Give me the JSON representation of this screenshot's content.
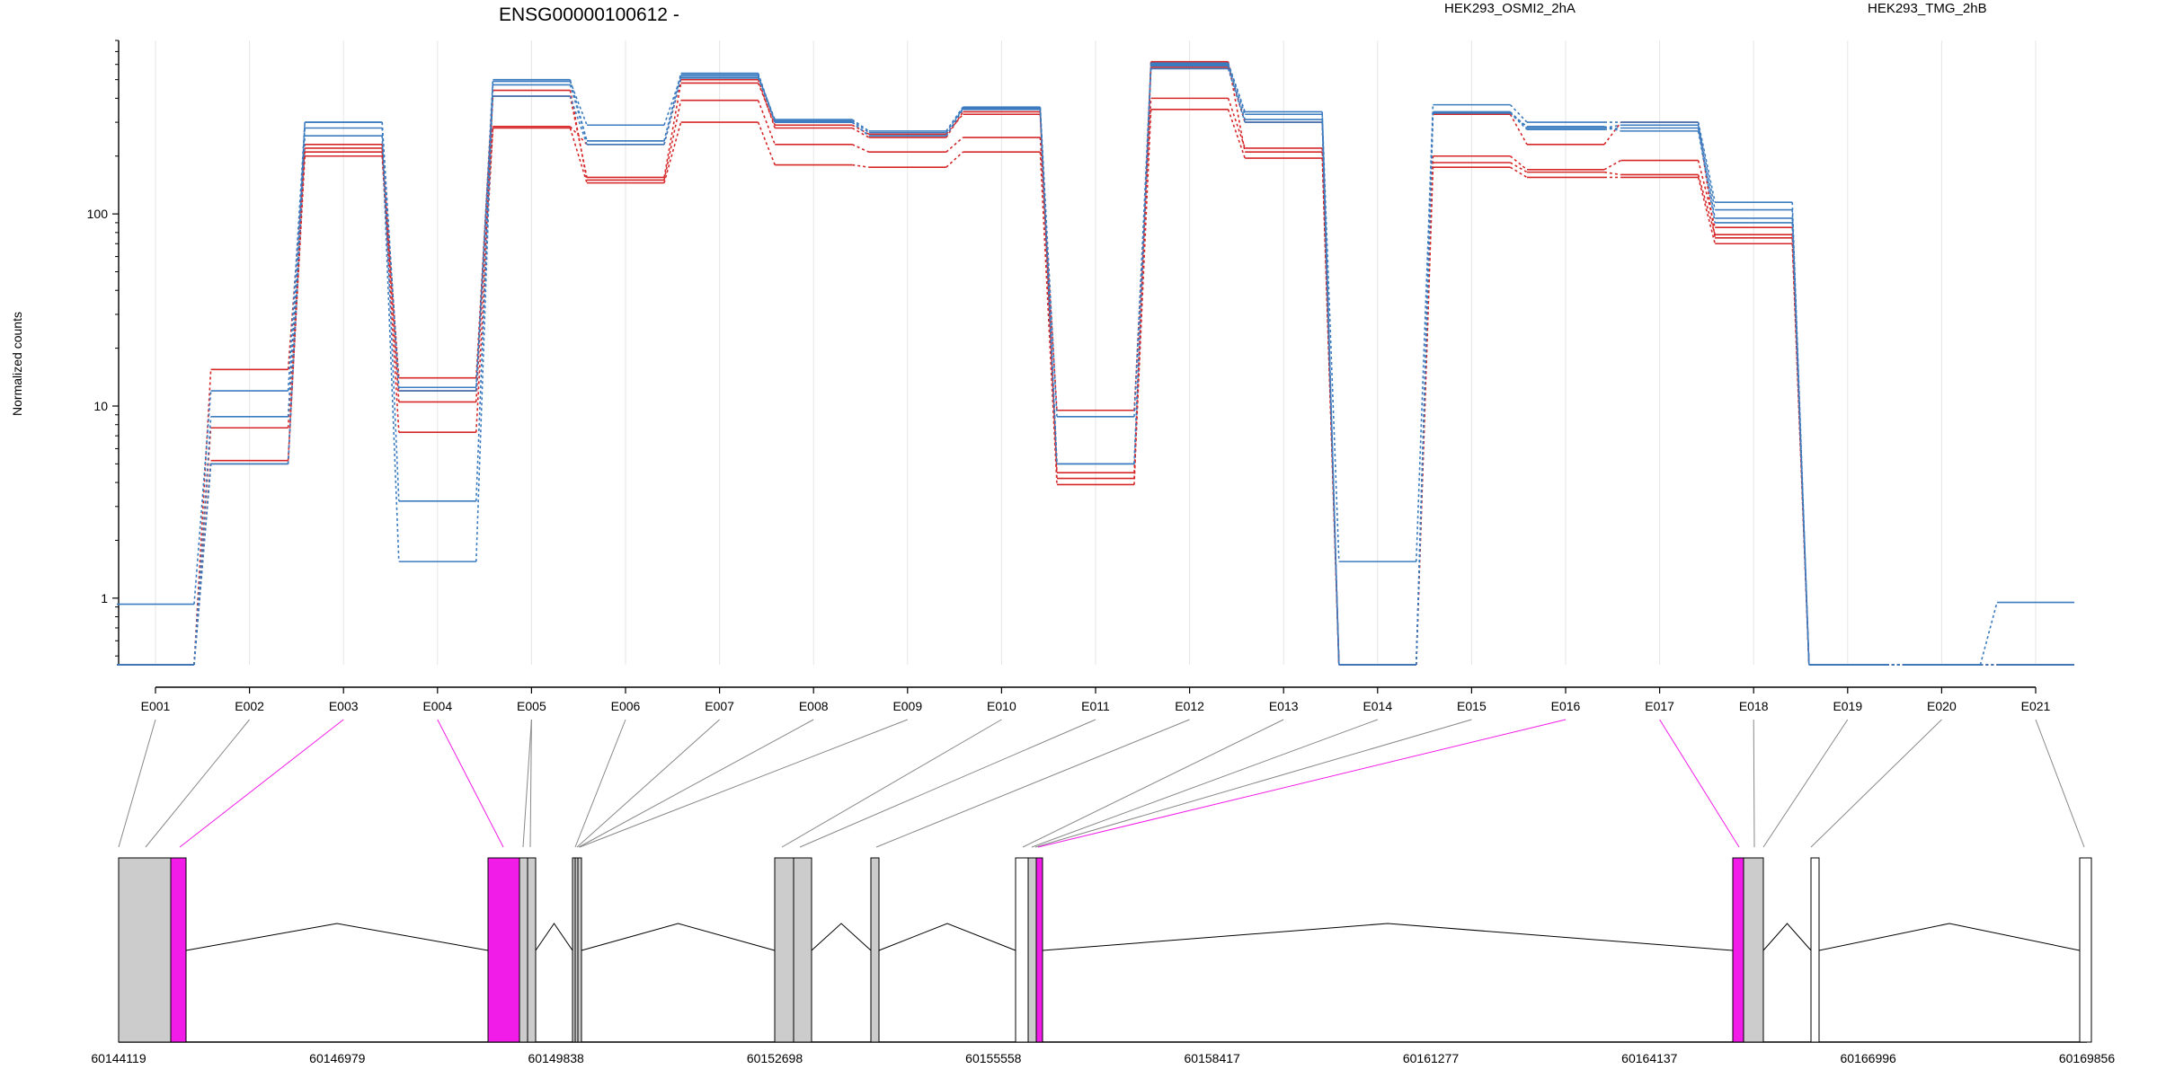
{
  "chart_data": {
    "type": "line",
    "title": "ENSG00000100612 -",
    "ylabel": "Normalized counts",
    "y_scale": "log",
    "ylim": [
      0.45,
      800
    ],
    "y_ticks": [
      1,
      10,
      100
    ],
    "y_tick_labels": [
      "1",
      "10",
      "100"
    ],
    "categories": [
      "E001",
      "E002",
      "E003",
      "E004",
      "E005",
      "E006",
      "E007",
      "E008",
      "E009",
      "E010",
      "E011",
      "E012",
      "E013",
      "E014",
      "E015",
      "E016",
      "E017",
      "E018",
      "E019",
      "E020",
      "E021"
    ],
    "legend": [
      {
        "name": "HEK293_OSMI2_2hA",
        "color": "#D62728"
      },
      {
        "name": "HEK293_TMG_2hB",
        "color": "#3B7BBF"
      }
    ],
    "series": [
      {
        "group": "HEK293_OSMI2_2hA",
        "color": "#D62728",
        "values": [
          0.45,
          15.5,
          220,
          14,
          440,
          150,
          390,
          230,
          210,
          250,
          9.5,
          400,
          220,
          0.45,
          200,
          170,
          190,
          85,
          0.45,
          0.45,
          0.45
        ]
      },
      {
        "group": "HEK293_OSMI2_2hA",
        "color": "#D62728",
        "values": [
          0.45,
          7.7,
          210,
          10.5,
          410,
          155,
          480,
          290,
          260,
          330,
          4.2,
          350,
          195,
          0.45,
          185,
          165,
          160,
          78,
          0.45,
          0.45,
          0.45
        ]
      },
      {
        "group": "HEK293_OSMI2_2hA",
        "color": "#D62728",
        "values": [
          0.45,
          5.2,
          200,
          7.3,
          280,
          145,
          300,
          180,
          175,
          210,
          3.9,
          620,
          210,
          0.45,
          175,
          155,
          155,
          70,
          0.45,
          0.45,
          0.45
        ]
      },
      {
        "group": "HEK293_OSMI2_2hA",
        "color": "#D62728",
        "values": [
          0.45,
          5.0,
          230,
          12,
          285,
          230,
          500,
          280,
          250,
          340,
          4.5,
          580,
          300,
          0.45,
          330,
          230,
          300,
          75,
          0.45,
          0.45,
          0.45
        ]
      },
      {
        "group": "HEK293_TMG_2hB",
        "color": "#3B7BBF",
        "values": [
          0.93,
          12,
          300,
          3.2,
          490,
          290,
          520,
          310,
          270,
          360,
          8.8,
          600,
          330,
          1.55,
          370,
          300,
          300,
          115,
          0.45,
          0.45,
          0.95
        ]
      },
      {
        "group": "HEK293_TMG_2hB",
        "color": "#3B7BBF",
        "values": [
          0.45,
          8.8,
          280,
          12.5,
          410,
          230,
          510,
          305,
          265,
          355,
          5.0,
          590,
          310,
          0.45,
          340,
          280,
          290,
          105,
          0.45,
          0.45,
          0.45
        ]
      },
      {
        "group": "HEK293_TMG_2hB",
        "color": "#3B7BBF",
        "values": [
          0.45,
          5.0,
          255,
          1.55,
          470,
          240,
          530,
          300,
          255,
          350,
          5.0,
          570,
          300,
          0.45,
          335,
          275,
          280,
          95,
          0.45,
          0.45,
          0.45
        ]
      },
      {
        "group": "HEK293_TMG_2hB",
        "color": "#3B7BBF",
        "values": [
          0.45,
          5.0,
          300,
          12,
          500,
          240,
          540,
          300,
          255,
          355,
          5.0,
          610,
          340,
          0.45,
          335,
          285,
          270,
          90,
          0.45,
          0.45,
          0.45
        ]
      }
    ],
    "gene_model": {
      "coordinate_labels": [
        "60144119",
        "60146979",
        "60149838",
        "60152698",
        "60155558",
        "60158417",
        "60161277",
        "60164137",
        "60166996",
        "60169856"
      ],
      "highlighted_exons": [
        "E003",
        "E004",
        "E016",
        "E017"
      ],
      "highlight_color": "#F21CE8",
      "exon_fill": "#CCCCCC"
    },
    "grid": "vertical-light"
  }
}
